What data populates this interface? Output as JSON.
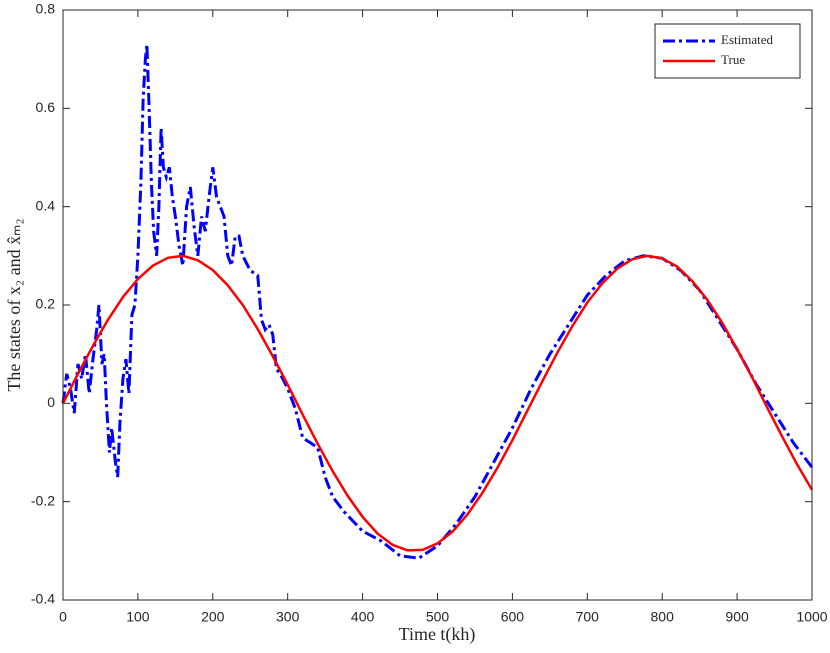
{
  "chart_data": {
    "type": "line",
    "xlabel": "Time t(kh)",
    "ylabel": "The states of x₂ and x̂ₘ₂",
    "xlim": [
      0,
      1000
    ],
    "xticks": [
      0,
      100,
      200,
      300,
      400,
      500,
      600,
      700,
      800,
      900,
      1000
    ],
    "ylim": [
      -0.4,
      0.8
    ],
    "yticks": [
      -0.4,
      -0.2,
      0,
      0.2,
      0.4,
      0.6,
      0.8
    ],
    "legend": "upper right",
    "series": [
      {
        "name": "Estimated",
        "color": "#0000ff",
        "style": "dashdot",
        "x": [
          0,
          5,
          10,
          15,
          20,
          25,
          30,
          35,
          40,
          45,
          48,
          52,
          55,
          58,
          62,
          65,
          70,
          73,
          76,
          80,
          84,
          88,
          92,
          96,
          100,
          104,
          107,
          110,
          112,
          115,
          118,
          121,
          125,
          128,
          131,
          134,
          138,
          142,
          146,
          150,
          155,
          160,
          165,
          170,
          175,
          180,
          185,
          190,
          195,
          200,
          205,
          210,
          215,
          220,
          225,
          230,
          235,
          240,
          250,
          260,
          265,
          270,
          275,
          280,
          285,
          290,
          300,
          310,
          320,
          330,
          340,
          350,
          360,
          375,
          400,
          425,
          450,
          475,
          500,
          525,
          550,
          575,
          600,
          625,
          650,
          675,
          700,
          725,
          750,
          775,
          800,
          825,
          850,
          875,
          900,
          925,
          950,
          975,
          1000
        ],
        "values": [
          0,
          0.06,
          0.03,
          -0.02,
          0.08,
          0.05,
          0.1,
          0.02,
          0.09,
          0.15,
          0.2,
          0.08,
          0.1,
          0.0,
          -0.1,
          -0.05,
          -0.12,
          -0.15,
          -0.04,
          0.05,
          0.09,
          0.02,
          0.18,
          0.2,
          0.3,
          0.45,
          0.62,
          0.7,
          0.73,
          0.6,
          0.45,
          0.35,
          0.3,
          0.4,
          0.56,
          0.48,
          0.46,
          0.48,
          0.42,
          0.38,
          0.32,
          0.28,
          0.4,
          0.44,
          0.36,
          0.3,
          0.38,
          0.35,
          0.42,
          0.48,
          0.42,
          0.4,
          0.38,
          0.3,
          0.28,
          0.34,
          0.34,
          0.3,
          0.27,
          0.26,
          0.17,
          0.15,
          0.16,
          0.14,
          0.07,
          0.06,
          0.03,
          -0.01,
          -0.07,
          -0.08,
          -0.09,
          -0.15,
          -0.19,
          -0.22,
          -0.26,
          -0.28,
          -0.31,
          -0.315,
          -0.29,
          -0.245,
          -0.19,
          -0.12,
          -0.05,
          0.03,
          0.1,
          0.16,
          0.22,
          0.26,
          0.29,
          0.3,
          0.295,
          0.27,
          0.23,
          0.17,
          0.11,
          0.04,
          -0.02,
          -0.08,
          -0.13
        ]
      },
      {
        "name": "True",
        "color": "#ff0000",
        "style": "solid",
        "x": [
          0,
          20,
          40,
          60,
          80,
          100,
          120,
          140,
          160,
          180,
          200,
          220,
          240,
          260,
          280,
          300,
          320,
          340,
          360,
          380,
          400,
          420,
          440,
          460,
          480,
          500,
          520,
          540,
          560,
          580,
          600,
          620,
          640,
          660,
          680,
          700,
          720,
          740,
          760,
          780,
          800,
          820,
          840,
          860,
          880,
          900,
          920,
          940,
          960,
          980,
          1000
        ],
        "values": [
          0,
          0.06,
          0.117,
          0.17,
          0.216,
          0.253,
          0.28,
          0.296,
          0.3,
          0.291,
          0.271,
          0.24,
          0.2,
          0.151,
          0.096,
          0.038,
          -0.023,
          -0.082,
          -0.138,
          -0.188,
          -0.231,
          -0.265,
          -0.288,
          -0.299,
          -0.298,
          -0.285,
          -0.261,
          -0.226,
          -0.182,
          -0.131,
          -0.075,
          -0.015,
          0.045,
          0.103,
          0.157,
          0.205,
          0.244,
          0.274,
          0.293,
          0.3,
          0.295,
          0.278,
          0.249,
          0.211,
          0.164,
          0.11,
          0.053,
          -0.008,
          -0.067,
          -0.124,
          -0.176
        ]
      }
    ]
  }
}
